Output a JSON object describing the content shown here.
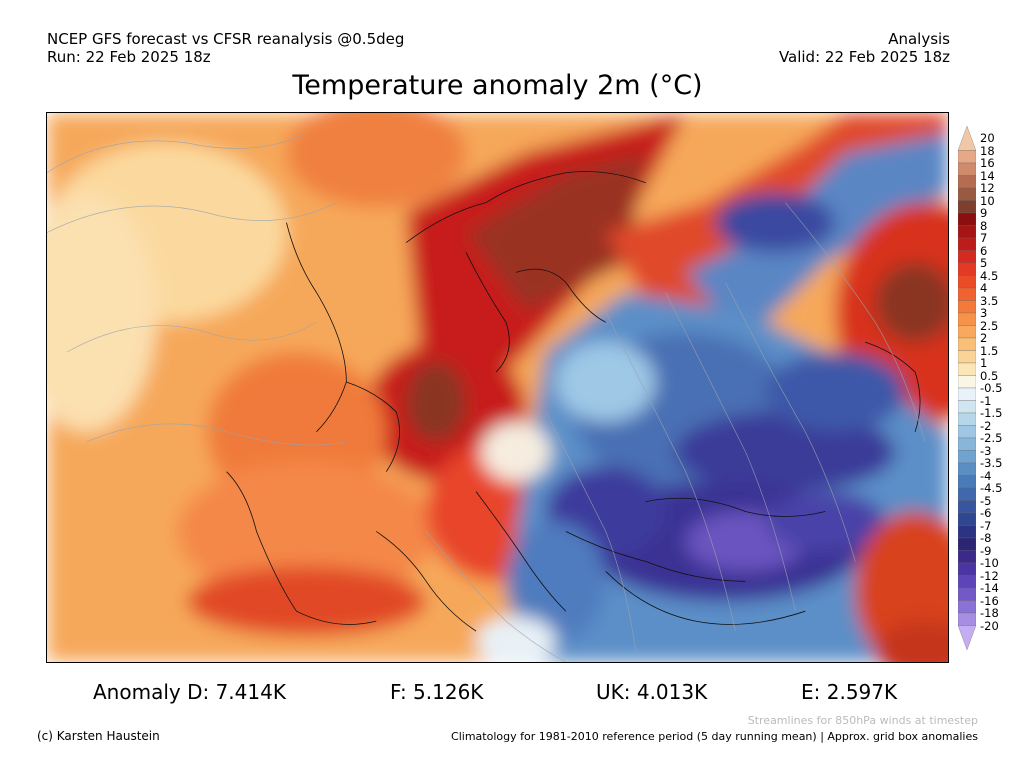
{
  "header": {
    "line1_left": "NCEP GFS forecast vs CFSR reanalysis @0.5deg",
    "line2_left": "Run: 22 Feb 2025 18z",
    "line1_right": "Analysis",
    "line2_right": "Valid: 22 Feb 2025 18z"
  },
  "title": "Temperature anomaly 2m (°C)",
  "colorbar": {
    "labels": [
      "20",
      "18",
      "16",
      "14",
      "12",
      "10",
      "9",
      "8",
      "7",
      "6",
      "5",
      "4.5",
      "4",
      "3.5",
      "3",
      "2.5",
      "2",
      "1.5",
      "1",
      "0.5",
      "-0.5",
      "-1",
      "-1.5",
      "-2",
      "-2.5",
      "-3",
      "-3.5",
      "-4",
      "-4.5",
      "-5",
      "-6",
      "-7",
      "-8",
      "-9",
      "-10",
      "-12",
      "-14",
      "-16",
      "-18",
      "-20"
    ],
    "colors": [
      "#f2c7a8",
      "#e6a887",
      "#d08a6c",
      "#b56d52",
      "#9a5a42",
      "#7e3f2e",
      "#8a1010",
      "#a51515",
      "#bd1c1c",
      "#d42a20",
      "#e23a25",
      "#ea4c28",
      "#f0622f",
      "#f47a3a",
      "#f7924a",
      "#f8a95e",
      "#f9bf78",
      "#fad496",
      "#fbe6b8",
      "#fbf5e6",
      "#e8f2f8",
      "#cfe5f0",
      "#b6d6ea",
      "#9fc6e2",
      "#88b6da",
      "#70a3d0",
      "#5b8fc4",
      "#4b7ab8",
      "#4068ac",
      "#37569f",
      "#2f4690",
      "#2b3482",
      "#2c2574",
      "#3b2a8a",
      "#4b35a2",
      "#5d45b8",
      "#7259c8",
      "#8b72d6",
      "#a68ee2",
      "#c2aef0"
    ]
  },
  "stats": {
    "d": "Anomaly D: 7.414K",
    "f": "F: 5.126K",
    "uk": "UK: 4.013K",
    "e": "E: 2.597K"
  },
  "footer": {
    "credit": "(c) Karsten Haustein",
    "streamlines_note": "Streamlines for 850hPa winds at timestep",
    "climatology_note": "Climatology for 1981-2010 reference period (5 day running mean) | Approx. grid box anomalies"
  }
}
